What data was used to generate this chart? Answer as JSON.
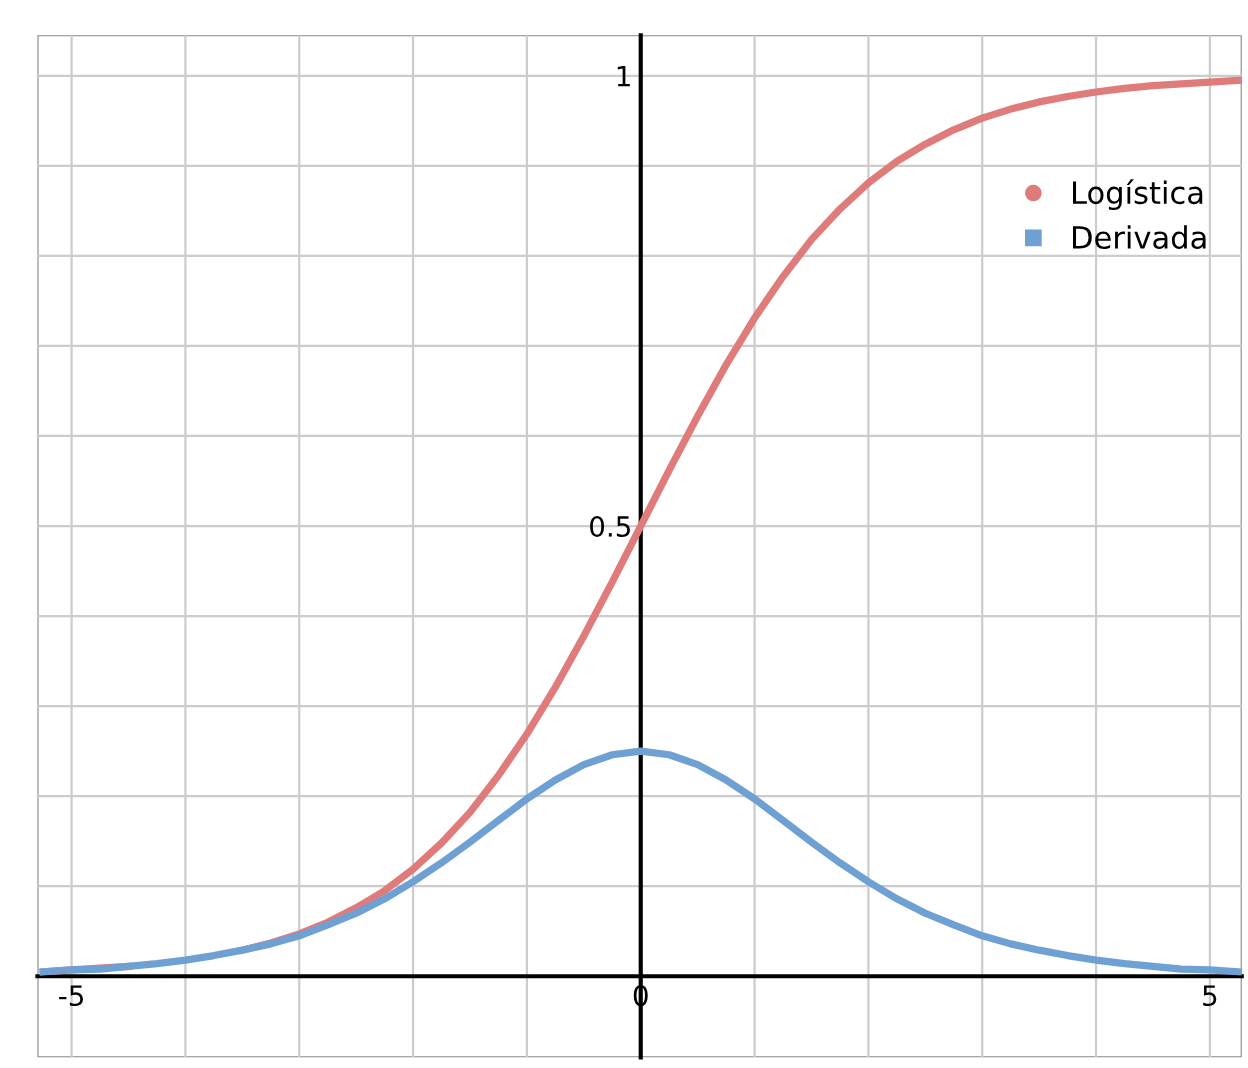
{
  "chart_data": {
    "type": "line",
    "x": [
      -5.25,
      -5,
      -4.75,
      -4.5,
      -4.25,
      -4,
      -3.75,
      -3.5,
      -3.25,
      -3,
      -2.75,
      -2.5,
      -2.25,
      -2,
      -1.75,
      -1.5,
      -1.25,
      -1,
      -0.75,
      -0.5,
      -0.25,
      0,
      0.25,
      0.5,
      0.75,
      1,
      1.25,
      1.5,
      1.75,
      2,
      2.25,
      2.5,
      2.75,
      3,
      3.25,
      3.5,
      3.75,
      4,
      4.25,
      4.5,
      4.75,
      5,
      5.25
    ],
    "series": [
      {
        "name": "Logística",
        "color": "#e07b7b",
        "values": [
          0.005,
          0.007,
          0.009,
          0.011,
          null,
          null,
          null,
          0.029,
          0.037,
          0.047,
          0.06,
          0.076,
          0.095,
          0.119,
          0.148,
          0.182,
          0.223,
          0.269,
          0.321,
          0.378,
          0.438,
          0.5,
          0.562,
          0.622,
          0.679,
          0.731,
          0.777,
          0.818,
          0.852,
          0.881,
          0.905,
          0.924,
          0.94,
          0.953,
          0.963,
          0.971,
          0.977,
          0.982,
          0.986,
          0.989,
          0.991,
          0.993,
          0.995
        ]
      },
      {
        "name": "Derivada",
        "color": "#6fa0d4",
        "values": [
          0.005,
          0.007,
          0.008,
          0.011,
          0.014,
          0.018,
          0.023,
          0.029,
          0.036,
          0.045,
          0.057,
          0.07,
          0.086,
          0.105,
          0.126,
          0.149,
          0.173,
          0.197,
          0.218,
          0.235,
          0.246,
          0.25,
          0.246,
          0.235,
          0.218,
          0.197,
          0.173,
          0.149,
          0.126,
          0.105,
          0.086,
          0.07,
          0.057,
          0.045,
          0.036,
          0.029,
          0.023,
          0.018,
          0.014,
          0.011,
          0.008,
          0.007,
          0.005
        ]
      }
    ],
    "xlim": [
      -5.3,
      5.28
    ],
    "ylim": [
      -0.09,
      1.045
    ],
    "xticks": [
      -5,
      {
        "value": -4,
        "label": null
      },
      {
        "value": -3,
        "label": null
      },
      {
        "value": -2,
        "label": null
      },
      {
        "value": -1,
        "label": null
      },
      0,
      {
        "value": 1,
        "label": null
      },
      {
        "value": 2,
        "label": null
      },
      {
        "value": 3,
        "label": null
      },
      {
        "value": 4,
        "label": null
      },
      5
    ],
    "yticks": [
      {
        "value": 0.1,
        "label": null
      },
      {
        "value": 0.2,
        "label": null
      },
      {
        "value": 0.3,
        "label": null
      },
      {
        "value": 0.4,
        "label": null
      },
      0.5,
      {
        "value": 0.6,
        "label": null
      },
      {
        "value": 0.7,
        "label": null
      },
      {
        "value": 0.8,
        "label": null
      },
      {
        "value": 0.9,
        "label": null
      },
      1
    ],
    "grid": true,
    "legend": "top right",
    "marker": "none",
    "line_style": "solid"
  }
}
